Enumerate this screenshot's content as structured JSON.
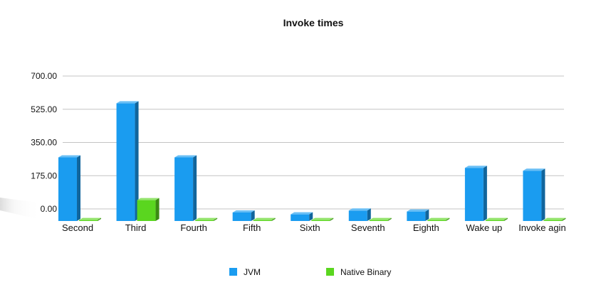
{
  "chart_data": {
    "type": "bar",
    "title": "Invoke times",
    "xlabel": "",
    "ylabel": "",
    "categories": [
      "Second",
      "Third",
      "Fourth",
      "Fifth",
      "Sixth",
      "Seventh",
      "Eighth",
      "Wake up",
      "Invoke agin"
    ],
    "series": [
      {
        "name": "JVM",
        "color": "#1a9cf0",
        "values": [
          335,
          620,
          335,
          45,
          35,
          55,
          50,
          280,
          265
        ]
      },
      {
        "name": "Native Binary",
        "color": "#5ad61f",
        "values": [
          5,
          110,
          5,
          5,
          5,
          5,
          5,
          5,
          5
        ]
      }
    ],
    "ylim": [
      0,
      700
    ],
    "yticks": [
      "0.00",
      "175.00",
      "350.00",
      "525.00",
      "700.00"
    ],
    "ytick_values": [
      0,
      175,
      350,
      525,
      700
    ],
    "grid": true,
    "legend": "bottom"
  }
}
